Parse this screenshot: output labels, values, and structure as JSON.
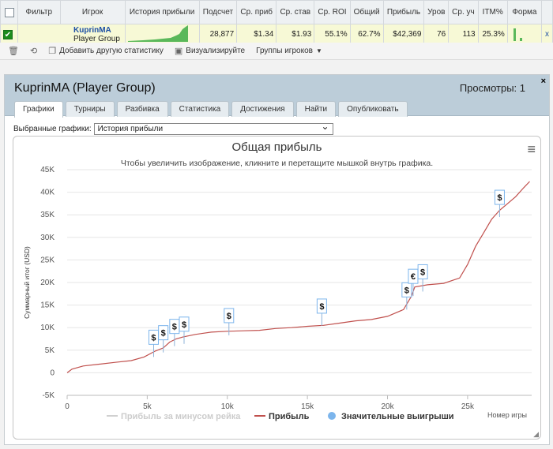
{
  "table": {
    "headers": [
      "Фильтр",
      "Игрок",
      "История прибыли",
      "Подсчет",
      "Ср. приб",
      "Ср. став",
      "Ср. ROI",
      "Общий",
      "Прибыль",
      "Уров",
      "Ср. уч",
      "ITM%",
      "Форма"
    ],
    "row": {
      "player_name": "KuprinMA",
      "player_group": "Player Group",
      "count": "28,877",
      "avg_profit": "$1.34",
      "avg_stake": "$1.93",
      "avg_roi": "55.1%",
      "total": "62.7%",
      "profit": "$42,369",
      "level": "76",
      "avg_entries": "113",
      "itm": "25.3%",
      "close_label": "x"
    }
  },
  "toolbar": {
    "add_stats": "Добавить другую статистику",
    "visualize": "Визуализируйте",
    "groups": "Группы игроков"
  },
  "panel": {
    "title": "KuprinMA (Player Group)",
    "views": "Просмотры: 1",
    "close": "×",
    "tabs": [
      "Графики",
      "Турниры",
      "Разбивка",
      "Статистика",
      "Достижения",
      "Найти",
      "Опубликовать"
    ],
    "selected_label": "Выбранные графики:",
    "selected_value": "История прибыли"
  },
  "chart_data": {
    "type": "line",
    "title": "Общая прибыль",
    "subtitle": "Чтобы увеличить изображение, кликните и перетащите мышкой внутрь графика.",
    "xlabel": "Номер игры",
    "ylabel": "Суммарный итог (USD)",
    "xlim": [
      0,
      29000
    ],
    "ylim": [
      -5000,
      45000
    ],
    "x_ticks": [
      0,
      5000,
      10000,
      15000,
      20000,
      25000
    ],
    "x_tick_labels": [
      "0",
      "5k",
      "10k",
      "15k",
      "20k",
      "25k"
    ],
    "y_ticks": [
      -5000,
      0,
      5000,
      10000,
      15000,
      20000,
      25000,
      30000,
      35000,
      40000,
      45000
    ],
    "y_tick_labels": [
      "-5K",
      "0",
      "5K",
      "10K",
      "15K",
      "20K",
      "25K",
      "30K",
      "35K",
      "40K",
      "45K"
    ],
    "grid": "horizontal",
    "series": [
      {
        "name": "Прибыль",
        "color": "#c0504d",
        "x": [
          0,
          300,
          1000,
          2000,
          3000,
          4000,
          4800,
          5500,
          6000,
          6400,
          6800,
          7200,
          8000,
          9000,
          10000,
          11000,
          12000,
          13000,
          14000,
          15000,
          16000,
          17000,
          18000,
          19000,
          20000,
          21000,
          21500,
          21700,
          22500,
          23500,
          24500,
          25000,
          25500,
          26000,
          26500,
          27000,
          27500,
          28000,
          28500,
          28877
        ],
        "y": [
          0,
          800,
          1500,
          1900,
          2300,
          2700,
          3500,
          4800,
          5500,
          6800,
          7500,
          7900,
          8500,
          9000,
          9200,
          9300,
          9400,
          9800,
          10000,
          10300,
          10500,
          11000,
          11500,
          11800,
          12500,
          14000,
          17000,
          19000,
          19500,
          19800,
          21000,
          24000,
          28000,
          31000,
          34000,
          36000,
          37500,
          39000,
          41000,
          42369
        ]
      }
    ],
    "big_wins": [
      {
        "x": 5400,
        "y": 3500,
        "symbol": "$"
      },
      {
        "x": 6000,
        "y": 4500,
        "symbol": "$"
      },
      {
        "x": 6700,
        "y": 5900,
        "symbol": "$"
      },
      {
        "x": 7300,
        "y": 6400,
        "symbol": "$"
      },
      {
        "x": 10100,
        "y": 8300,
        "symbol": "$"
      },
      {
        "x": 15900,
        "y": 10400,
        "symbol": "$"
      },
      {
        "x": 21200,
        "y": 14000,
        "symbol": "$"
      },
      {
        "x": 21600,
        "y": 17000,
        "symbol": "€"
      },
      {
        "x": 22200,
        "y": 18000,
        "symbol": "$"
      },
      {
        "x": 27000,
        "y": 34500,
        "symbol": "$"
      }
    ],
    "legend": {
      "placement": "bottom",
      "items": [
        {
          "label": "Прибыль за минусом рейка",
          "color": "#d0d0d0",
          "kind": "line"
        },
        {
          "label": "Прибыль",
          "color": "#c0504d",
          "kind": "line"
        },
        {
          "label": "Значительные выигрыши",
          "color": "#7cb5ec",
          "kind": "dot"
        }
      ]
    }
  }
}
